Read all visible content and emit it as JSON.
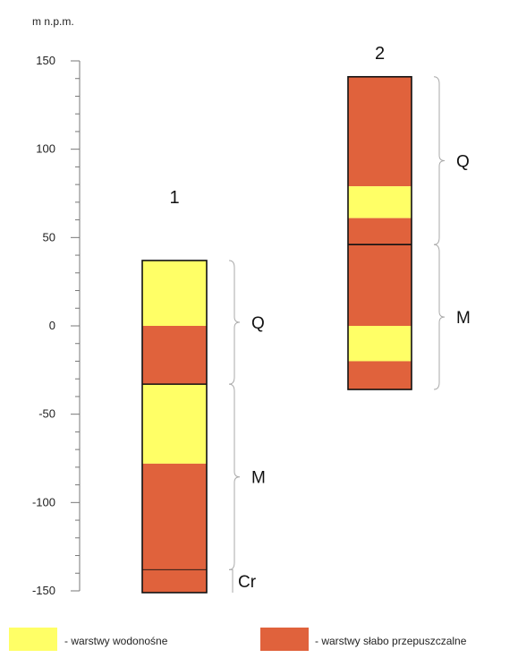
{
  "axis": {
    "unit_label": "m n.p.m.",
    "range": [
      -150,
      150
    ],
    "major_step": 50,
    "minor_step": 10,
    "ticks": [
      150,
      100,
      50,
      0,
      -50,
      -100,
      -150
    ]
  },
  "boreholes": [
    {
      "label": "1",
      "top": 37,
      "bottom": -151,
      "layers": [
        {
          "from": 37,
          "to": 0,
          "kind": "aquifer"
        },
        {
          "from": 0,
          "to": -33,
          "kind": "aquitard"
        },
        {
          "from": -33,
          "to": -78,
          "kind": "aquifer"
        },
        {
          "from": -78,
          "to": -151,
          "kind": "aquitard"
        }
      ],
      "unit_boundaries": [
        -33,
        -138
      ],
      "units": [
        {
          "label": "Q",
          "from": 37,
          "to": -33
        },
        {
          "label": "M",
          "from": -33,
          "to": -138
        },
        {
          "label": "Cr",
          "from": -138,
          "to": -151
        }
      ]
    },
    {
      "label": "2",
      "top": 141,
      "bottom": -36,
      "layers": [
        {
          "from": 141,
          "to": 79,
          "kind": "aquitard"
        },
        {
          "from": 79,
          "to": 61,
          "kind": "aquifer"
        },
        {
          "from": 61,
          "to": 46,
          "kind": "aquitard"
        },
        {
          "from": 46,
          "to": 0,
          "kind": "aquitard"
        },
        {
          "from": 0,
          "to": -20,
          "kind": "aquifer"
        },
        {
          "from": -20,
          "to": -36,
          "kind": "aquitard"
        }
      ],
      "unit_boundaries": [
        46
      ],
      "units": [
        {
          "label": "Q",
          "from": 141,
          "to": 46
        },
        {
          "label": "M",
          "from": 46,
          "to": -36
        }
      ]
    }
  ],
  "legend": {
    "aquifer_label": "- warstwy wodonośne",
    "aquitard_label": "- warstwy słabo przepuszczalne"
  },
  "colors": {
    "aquifer": "#ffff66",
    "aquitard": "#e0623c",
    "outline": "#111111",
    "axis": "#777777",
    "brace": "#aaaaaa"
  }
}
